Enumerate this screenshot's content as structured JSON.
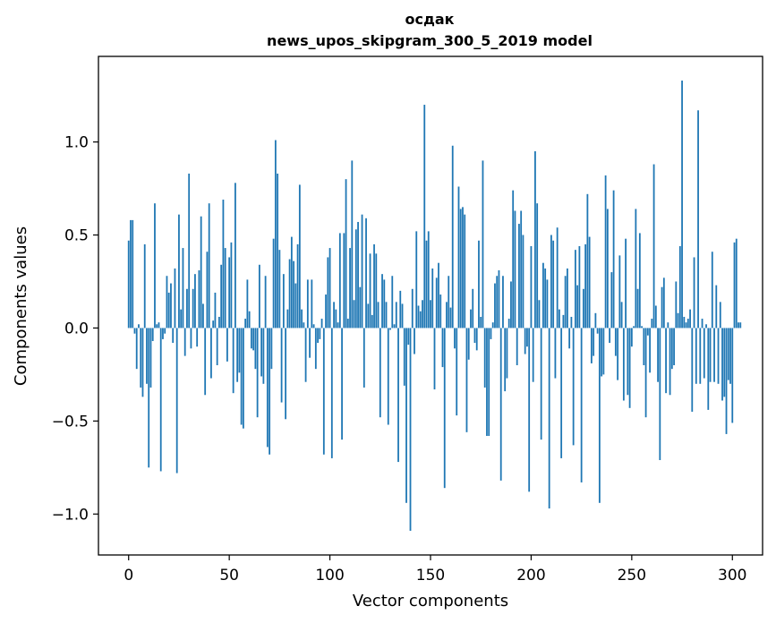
{
  "chart_data": {
    "type": "bar",
    "title_line1": "осдак",
    "title_line2": "news_upos_skipgram_300_5_2019 model",
    "xlabel": "Vector components",
    "ylabel": "Components values",
    "xlim": [
      -15,
      315
    ],
    "ylim": [
      -1.22,
      1.46
    ],
    "xticks": [
      0,
      50,
      100,
      150,
      200,
      250,
      300
    ],
    "xtick_labels": [
      "0",
      "50",
      "100",
      "150",
      "200",
      "250",
      "300"
    ],
    "yticks": [
      -1.0,
      -0.5,
      0.0,
      0.5,
      1.0
    ],
    "ytick_labels": [
      "−1.0",
      "−0.5",
      "0.0",
      "0.5",
      "1.0"
    ],
    "bar_color": "#1f77b4",
    "values": [
      0.47,
      0.58,
      0.58,
      -0.03,
      -0.22,
      0.02,
      -0.32,
      -0.37,
      0.45,
      -0.3,
      -0.75,
      -0.32,
      -0.07,
      0.67,
      0.02,
      0.03,
      -0.77,
      -0.06,
      -0.03,
      0.28,
      0.19,
      0.24,
      -0.08,
      0.32,
      -0.78,
      0.61,
      0.1,
      0.43,
      -0.15,
      0.21,
      0.83,
      -0.11,
      0.21,
      0.29,
      -0.1,
      0.31,
      0.6,
      0.13,
      -0.36,
      0.41,
      0.67,
      -0.27,
      0.04,
      0.19,
      -0.2,
      0.06,
      0.34,
      0.69,
      0.43,
      -0.18,
      0.38,
      0.46,
      -0.35,
      0.78,
      -0.29,
      -0.24,
      -0.52,
      -0.54,
      0.05,
      0.26,
      0.09,
      -0.11,
      -0.12,
      -0.22,
      -0.48,
      0.34,
      -0.26,
      -0.3,
      0.28,
      -0.64,
      -0.68,
      -0.22,
      0.48,
      1.01,
      0.83,
      0.42,
      -0.4,
      0.29,
      -0.49,
      0.1,
      0.37,
      0.49,
      0.36,
      0.24,
      0.45,
      0.77,
      0.1,
      0.03,
      -0.29,
      0.26,
      -0.16,
      0.26,
      0.02,
      -0.22,
      -0.08,
      -0.06,
      0.05,
      -0.68,
      0.18,
      0.38,
      0.43,
      -0.7,
      0.14,
      0.1,
      0.03,
      0.51,
      -0.6,
      0.51,
      0.8,
      0.05,
      0.43,
      0.9,
      0.15,
      0.53,
      0.57,
      0.22,
      0.61,
      -0.32,
      0.59,
      0.13,
      0.4,
      0.07,
      0.45,
      0.4,
      0.14,
      -0.48,
      0.29,
      0.26,
      0.14,
      -0.52,
      -0.01,
      0.28,
      0.02,
      0.14,
      -0.72,
      0.2,
      0.13,
      -0.31,
      -0.94,
      -0.09,
      -1.09,
      0.21,
      -0.14,
      0.52,
      0.12,
      0.09,
      0.15,
      1.2,
      0.47,
      0.52,
      0.15,
      0.32,
      -0.33,
      0.27,
      0.35,
      0.18,
      -0.21,
      -0.86,
      0.14,
      0.28,
      0.11,
      0.98,
      -0.11,
      -0.47,
      0.76,
      0.64,
      0.65,
      0.61,
      -0.56,
      -0.17,
      0.1,
      0.21,
      -0.08,
      -0.12,
      0.47,
      0.06,
      0.9,
      -0.32,
      -0.58,
      -0.58,
      -0.06,
      0.03,
      0.24,
      0.28,
      0.31,
      -0.82,
      0.28,
      -0.34,
      -0.27,
      0.05,
      0.25,
      0.74,
      0.63,
      -0.2,
      0.56,
      0.63,
      0.5,
      -0.14,
      -0.1,
      -0.88,
      0.44,
      -0.29,
      0.95,
      0.67,
      0.15,
      -0.6,
      0.35,
      0.32,
      0.26,
      -0.97,
      0.5,
      0.47,
      -0.27,
      0.54,
      0.1,
      -0.7,
      0.07,
      0.28,
      0.32,
      -0.11,
      0.06,
      -0.63,
      0.42,
      0.23,
      0.44,
      -0.83,
      0.21,
      0.45,
      0.72,
      0.49,
      -0.19,
      -0.15,
      0.08,
      -0.03,
      -0.94,
      -0.26,
      -0.25,
      0.82,
      0.64,
      -0.08,
      0.3,
      0.74,
      -0.15,
      -0.28,
      0.39,
      0.14,
      -0.39,
      0.48,
      -0.36,
      -0.43,
      -0.1,
      0.01,
      0.64,
      0.21,
      0.51,
      0.01,
      -0.2,
      -0.48,
      -0.04,
      -0.24,
      0.05,
      0.88,
      0.12,
      -0.29,
      -0.71,
      0.22,
      0.27,
      -0.35,
      0.03,
      -0.36,
      -0.22,
      -0.2,
      0.25,
      0.08,
      0.44,
      1.33,
      0.06,
      0.03,
      0.05,
      0.1,
      -0.45,
      0.38,
      -0.3,
      1.17,
      -0.3,
      0.05,
      -0.27,
      0.02,
      -0.44,
      -0.29,
      0.41,
      -0.29,
      0.23,
      -0.3,
      0.14,
      -0.39,
      -0.37,
      -0.57,
      -0.28,
      -0.3,
      -0.51,
      0.46,
      0.48,
      0.03,
      0.03
    ]
  }
}
